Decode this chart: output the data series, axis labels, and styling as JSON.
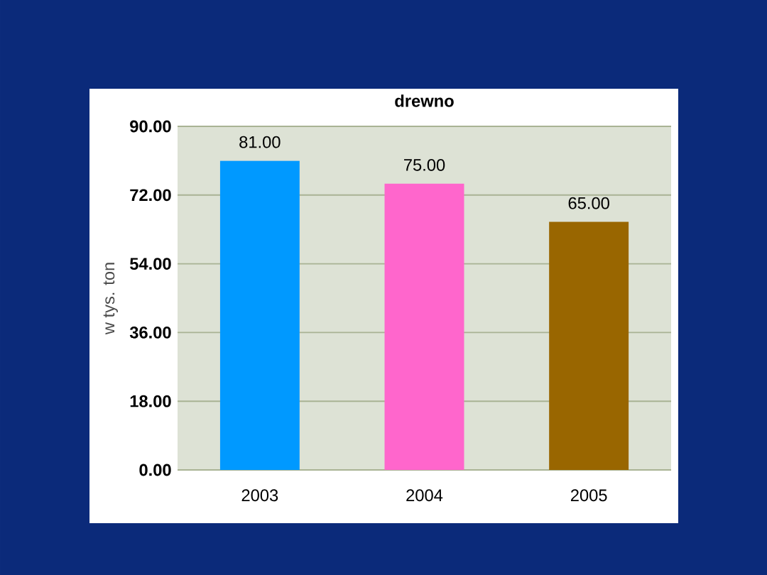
{
  "chart_data": {
    "type": "bar",
    "title": "drewno",
    "ylabel": "w tys. ton",
    "categories": [
      "2003",
      "2004",
      "2005"
    ],
    "values": [
      81,
      75,
      65
    ],
    "colors": [
      "#0099ff",
      "#ff66cc",
      "#996600"
    ],
    "value_labels": [
      "81.00",
      "75.00",
      "65.00"
    ],
    "ylim": [
      0,
      90
    ],
    "yticks": [
      {
        "value": 0,
        "label": "0.00"
      },
      {
        "value": 18,
        "label": "18.00"
      },
      {
        "value": 36,
        "label": "36.00"
      },
      {
        "value": 54,
        "label": "54.00"
      },
      {
        "value": 72,
        "label": "72.00"
      },
      {
        "value": 90,
        "label": "90.00"
      }
    ],
    "grid": "y"
  }
}
